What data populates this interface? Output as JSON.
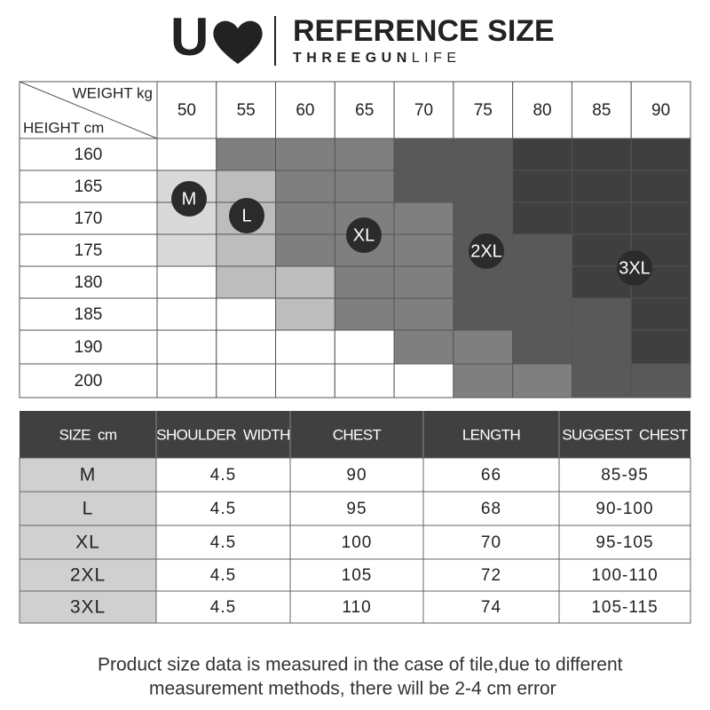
{
  "header": {
    "logo": "U",
    "title": "REFERENCE SIZE",
    "brand": "THREEGUN",
    "brand_suffix": "LIFE"
  },
  "size_chart": {
    "weight_label": "WEIGHT kg",
    "height_label": "HEIGHT cm",
    "weights": [
      50,
      55,
      60,
      65,
      70,
      75,
      80,
      85,
      90
    ],
    "heights": [
      160,
      165,
      170,
      175,
      180,
      185,
      190,
      200
    ],
    "size_markers": [
      "M",
      "L",
      "XL",
      "2XL",
      "3XL"
    ]
  },
  "measurements": {
    "columns": [
      "SIZE cm",
      "SHOULDER WIDTH",
      "CHEST",
      "LENGTH",
      "SUGGEST CHEST"
    ],
    "rows": [
      [
        "M",
        "4.5",
        "90",
        "66",
        "85-95"
      ],
      [
        "L",
        "4.5",
        "95",
        "68",
        "90-100"
      ],
      [
        "XL",
        "4.5",
        "100",
        "70",
        "95-105"
      ],
      [
        "2XL",
        "4.5",
        "105",
        "72",
        "100-110"
      ],
      [
        "3XL",
        "4.5",
        "110",
        "74",
        "105-115"
      ]
    ]
  },
  "note": [
    "Product size data is measured in the case of tile,due to different",
    "measurement methods, there will be 2-4 cm error"
  ]
}
